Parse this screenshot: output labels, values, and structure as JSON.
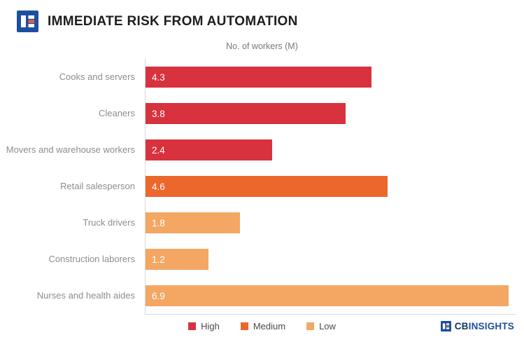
{
  "header": {
    "title": "IMMEDIATE RISK FROM AUTOMATION"
  },
  "chart_data": {
    "type": "bar",
    "orientation": "horizontal",
    "title": "IMMEDIATE RISK FROM AUTOMATION",
    "axis_title": "No. of workers (M)",
    "xlim": [
      0,
      6.9
    ],
    "grid": false,
    "legend_position": "bottom",
    "categories": [
      "Cooks and servers",
      "Cleaners",
      "Movers and warehouse workers",
      "Retail salesperson",
      "Truck drivers",
      "Construction laborers",
      "Nurses and health aides"
    ],
    "values": [
      4.3,
      3.8,
      2.4,
      4.6,
      1.8,
      1.2,
      6.9
    ],
    "risk_levels": [
      "High",
      "High",
      "High",
      "Medium",
      "Low",
      "Low",
      "Low"
    ],
    "legend": [
      {
        "label": "High",
        "color": "#d8323e"
      },
      {
        "label": "Medium",
        "color": "#ec672c"
      },
      {
        "label": "Low",
        "color": "#f3a763"
      }
    ]
  },
  "footer": {
    "brand_cb": "CB",
    "brand_insights": "INSIGHTS"
  },
  "colors": {
    "logo_blue": "#1d4f9e",
    "logo_orange": "#e8632c",
    "axis_line": "#d9d9d9"
  }
}
